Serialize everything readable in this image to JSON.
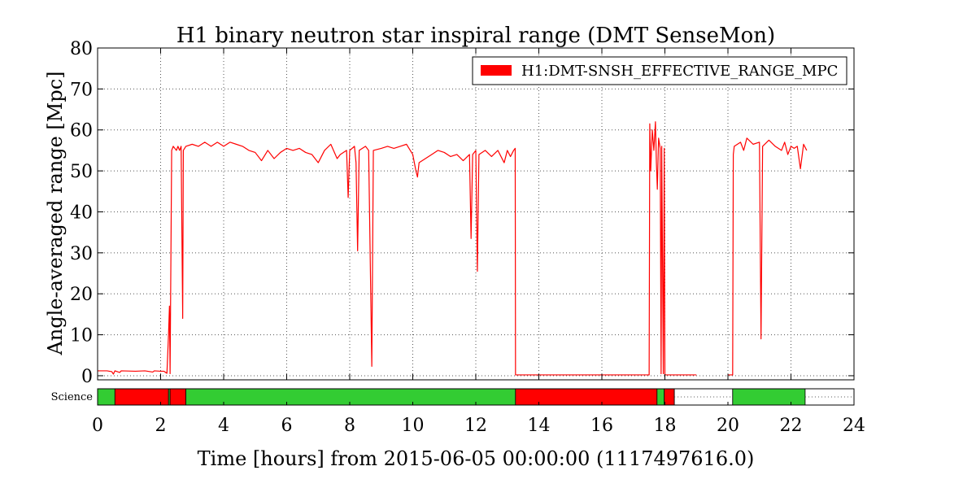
{
  "chart_data": {
    "type": "line",
    "title": "H1 binary neutron star inspiral range (DMT SenseMon)",
    "xlabel": "Time [hours] from 2015-06-05 00:00:00 (1117497616.0)",
    "ylabel": "Angle-averaged range [Mpc]",
    "xlim": [
      0,
      24
    ],
    "ylim": [
      -1,
      80
    ],
    "x_ticks": [
      0,
      2,
      4,
      6,
      8,
      10,
      12,
      14,
      16,
      18,
      20,
      22,
      24
    ],
    "y_ticks": [
      0,
      10,
      20,
      30,
      40,
      50,
      60,
      70,
      80
    ],
    "grid": true,
    "legend_position": "top-right",
    "series": [
      {
        "name": "H1:DMT-SNSH_EFFECTIVE_RANGE_MPC",
        "color": "#ff0000",
        "points": [
          [
            0.0,
            1.2
          ],
          [
            0.3,
            1.2
          ],
          [
            0.45,
            1.0
          ],
          [
            0.5,
            0.4
          ],
          [
            0.55,
            1.2
          ],
          [
            0.7,
            0.8
          ],
          [
            0.75,
            1.2
          ],
          [
            1.2,
            1.1
          ],
          [
            1.5,
            1.2
          ],
          [
            1.75,
            0.9
          ],
          [
            1.8,
            1.2
          ],
          [
            2.0,
            1.1
          ],
          [
            2.1,
            1.1
          ],
          [
            2.2,
            0.6
          ],
          [
            2.25,
            10
          ],
          [
            2.28,
            17
          ],
          [
            2.3,
            0.5
          ],
          [
            2.35,
            55
          ],
          [
            2.4,
            56
          ],
          [
            2.5,
            55
          ],
          [
            2.55,
            56
          ],
          [
            2.6,
            55
          ],
          [
            2.65,
            56
          ],
          [
            2.7,
            14
          ],
          [
            2.72,
            55
          ],
          [
            2.8,
            56
          ],
          [
            3.0,
            56.5
          ],
          [
            3.2,
            56
          ],
          [
            3.4,
            57
          ],
          [
            3.6,
            56
          ],
          [
            3.8,
            57
          ],
          [
            4.0,
            56
          ],
          [
            4.2,
            57
          ],
          [
            4.4,
            56.5
          ],
          [
            4.6,
            56
          ],
          [
            4.8,
            55
          ],
          [
            5.0,
            54.5
          ],
          [
            5.2,
            52.5
          ],
          [
            5.4,
            55
          ],
          [
            5.6,
            53
          ],
          [
            5.8,
            54.5
          ],
          [
            6.0,
            55.5
          ],
          [
            6.2,
            55
          ],
          [
            6.4,
            55.5
          ],
          [
            6.6,
            54.5
          ],
          [
            6.8,
            54
          ],
          [
            7.0,
            52
          ],
          [
            7.2,
            55
          ],
          [
            7.4,
            56.5
          ],
          [
            7.6,
            53
          ],
          [
            7.7,
            54
          ],
          [
            7.9,
            55
          ],
          [
            7.95,
            43.5
          ],
          [
            8.0,
            55
          ],
          [
            8.15,
            56
          ],
          [
            8.2,
            52
          ],
          [
            8.25,
            30.5
          ],
          [
            8.3,
            55
          ],
          [
            8.5,
            56
          ],
          [
            8.6,
            55
          ],
          [
            8.7,
            2.3
          ],
          [
            8.75,
            55
          ],
          [
            9.0,
            55.5
          ],
          [
            9.2,
            56
          ],
          [
            9.4,
            55.5
          ],
          [
            9.6,
            56
          ],
          [
            9.8,
            56.5
          ],
          [
            10.0,
            54
          ],
          [
            10.1,
            50
          ],
          [
            10.15,
            48.5
          ],
          [
            10.2,
            52
          ],
          [
            10.4,
            53
          ],
          [
            10.6,
            54
          ],
          [
            10.8,
            55
          ],
          [
            11.0,
            54.5
          ],
          [
            11.2,
            53.5
          ],
          [
            11.4,
            54
          ],
          [
            11.6,
            52.5
          ],
          [
            11.8,
            54
          ],
          [
            11.85,
            33.5
          ],
          [
            11.9,
            54
          ],
          [
            12.0,
            55
          ],
          [
            12.05,
            25.5
          ],
          [
            12.1,
            54
          ],
          [
            12.3,
            55
          ],
          [
            12.5,
            53.5
          ],
          [
            12.7,
            55
          ],
          [
            12.9,
            52
          ],
          [
            13.0,
            55
          ],
          [
            13.1,
            53.5
          ],
          [
            13.2,
            55
          ],
          [
            13.25,
            55.5
          ],
          [
            13.26,
            0.2
          ],
          [
            17.5,
            0.2
          ],
          [
            17.52,
            61.5
          ],
          [
            17.55,
            50
          ],
          [
            17.6,
            60
          ],
          [
            17.65,
            55
          ],
          [
            17.7,
            62
          ],
          [
            17.73,
            52
          ],
          [
            17.76,
            45.5
          ],
          [
            17.8,
            58
          ],
          [
            17.85,
            55.5
          ],
          [
            17.88,
            0.5
          ],
          [
            17.9,
            56
          ],
          [
            17.95,
            0.5
          ],
          [
            17.98,
            55.5
          ],
          [
            18.0,
            0.2
          ],
          [
            19.0,
            0.2
          ]
        ]
      },
      {
        "name": "",
        "color": "#ff0000",
        "points": [
          [
            20.0,
            0.2
          ],
          [
            20.15,
            0.2
          ],
          [
            20.17,
            54
          ],
          [
            20.2,
            56
          ],
          [
            20.4,
            57
          ],
          [
            20.5,
            55
          ],
          [
            20.6,
            58
          ],
          [
            20.8,
            56.5
          ],
          [
            21.0,
            57
          ],
          [
            21.05,
            9
          ],
          [
            21.1,
            56
          ],
          [
            21.3,
            57.5
          ],
          [
            21.5,
            56
          ],
          [
            21.7,
            55
          ],
          [
            21.8,
            57
          ],
          [
            21.9,
            54
          ],
          [
            22.0,
            56
          ],
          [
            22.1,
            55.5
          ],
          [
            22.2,
            56
          ],
          [
            22.3,
            50.5
          ],
          [
            22.4,
            56.5
          ],
          [
            22.5,
            55
          ]
        ]
      }
    ]
  },
  "segment_bar": {
    "label": "Science",
    "colors": {
      "on": "#33cc33",
      "off": "#ff0000",
      "none": "#ffffff"
    },
    "segments": [
      {
        "start": 0.0,
        "end": 0.55,
        "state": "on"
      },
      {
        "start": 0.55,
        "end": 2.25,
        "state": "off"
      },
      {
        "start": 2.25,
        "end": 2.3,
        "state": "on"
      },
      {
        "start": 2.3,
        "end": 2.8,
        "state": "off"
      },
      {
        "start": 2.8,
        "end": 13.26,
        "state": "on"
      },
      {
        "start": 13.26,
        "end": 17.75,
        "state": "off"
      },
      {
        "start": 17.75,
        "end": 17.98,
        "state": "on"
      },
      {
        "start": 17.98,
        "end": 18.3,
        "state": "off"
      },
      {
        "start": 18.3,
        "end": 20.15,
        "state": "none"
      },
      {
        "start": 20.15,
        "end": 22.45,
        "state": "on"
      },
      {
        "start": 22.45,
        "end": 24.0,
        "state": "none"
      }
    ]
  }
}
